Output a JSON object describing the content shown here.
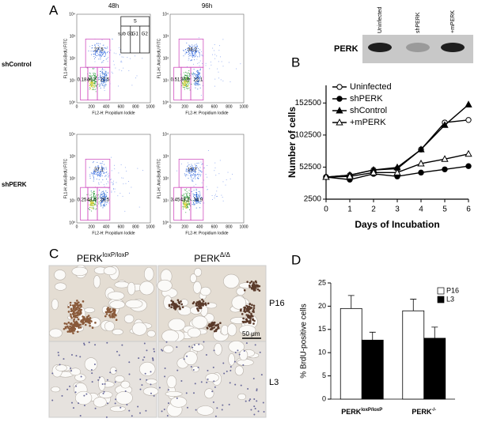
{
  "panel_labels": [
    "A",
    "B",
    "C",
    "D"
  ],
  "flow": {
    "columns": [
      "48h",
      "96h"
    ],
    "rows": [
      "shControl",
      "shPERK"
    ],
    "x_label": "FL2-H: Propidium Iodide",
    "y_label": "FL1-H: Anti-BrdU FITC",
    "x_ticks": [
      "0",
      "200",
      "400",
      "600",
      "800",
      "1000"
    ],
    "y_ticks": [
      "10⁰",
      "10¹",
      "10²",
      "10³",
      "10⁴"
    ],
    "gate_key": [
      "S",
      "sub G1",
      "G1",
      "G2"
    ],
    "plots": [
      [
        "27.5",
        "0.18",
        "46.7",
        "22.5"
      ],
      [
        "36.2",
        "0.51",
        "37.8",
        "22.1"
      ],
      [
        "27.1",
        "0.25",
        "43.4",
        "26.5"
      ],
      [
        "15.7",
        "3.45",
        "43.2",
        "34.9"
      ]
    ]
  },
  "blot": {
    "label": "PERK",
    "lanes": [
      "Uninfected",
      "shPERK",
      "+mPERK"
    ]
  },
  "histology": {
    "columns": [
      {
        "base": "PERK",
        "sup": "loxP/loxP"
      },
      {
        "base": "PERK",
        "sup": "Δ/Δ"
      }
    ],
    "rows": [
      "P16",
      "L3"
    ],
    "scale_bar": "50 μm"
  },
  "chart_data": [
    {
      "type": "line",
      "x_label": "Days of Incubation",
      "y_label": "Number of cells",
      "x": [
        0,
        1,
        2,
        3,
        4,
        5,
        6
      ],
      "xlim": [
        0,
        6
      ],
      "xticks": [
        0,
        1,
        2,
        3,
        4,
        5,
        6
      ],
      "ylim": [
        2500,
        180000
      ],
      "yticks": [
        2500,
        52500,
        102500,
        152500
      ],
      "legend": "upper left",
      "series": [
        {
          "name": "Uninfected",
          "color": "#000000",
          "marker": "circle",
          "filled": false,
          "values": [
            37000,
            40000,
            48000,
            50000,
            80000,
            122000,
            126000
          ]
        },
        {
          "name": "shPERK",
          "color": "#000000",
          "marker": "circle",
          "filled": true,
          "values": [
            37000,
            33000,
            42000,
            38000,
            44000,
            49000,
            54000
          ]
        },
        {
          "name": "shControl",
          "color": "#000000",
          "marker": "triangle",
          "filled": true,
          "values": [
            37000,
            40000,
            48000,
            52000,
            80000,
            118000,
            150000
          ]
        },
        {
          "name": "+mPERK",
          "color": "#000000",
          "marker": "triangle",
          "filled": false,
          "values": [
            37000,
            38000,
            44000,
            44000,
            58000,
            65000,
            73000
          ]
        }
      ]
    },
    {
      "type": "bar",
      "y_label": "% BrdU-positive cells",
      "categories": [
        "PERK",
        "PERK"
      ],
      "category_superscripts": [
        "loxP/loxP",
        "-/-"
      ],
      "ylim": [
        0,
        25
      ],
      "yticks": [
        0,
        5,
        10,
        15,
        20,
        25
      ],
      "legend": "upper right",
      "series": [
        {
          "name": "P16",
          "color": "#ffffff",
          "values": [
            19.5,
            19
          ],
          "errors": [
            2.8,
            2.5
          ]
        },
        {
          "name": "L3",
          "color": "#000000",
          "values": [
            12.7,
            13.1
          ],
          "errors": [
            1.7,
            2.4
          ]
        }
      ]
    }
  ]
}
